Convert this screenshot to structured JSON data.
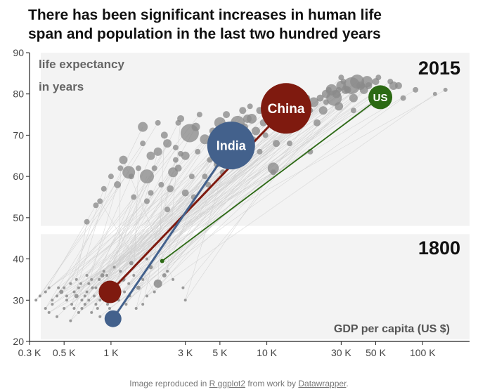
{
  "title_lines": [
    "There has been significant increases in human life",
    "span and population in the last two hundred years"
  ],
  "caption": {
    "prefix": "Image reproduced in ",
    "link1": "R ggplot2",
    "middle": " from work by ",
    "link2": "Datawrapper",
    "suffix": "."
  },
  "colors": {
    "panel_bg": "#f3f3f3",
    "bubble_gray": "#8a8a8a",
    "trail_gray": "#cfcfcf",
    "china": "#7f1a0f",
    "india": "#43618c",
    "us": "#2c6a14"
  },
  "chart_data": {
    "type": "scatter",
    "x_scale": "log",
    "xlabel": "GDP per capita (US $)",
    "ylabel": "life expectancy\nin years",
    "xlim": [
      300,
      200000
    ],
    "ylim": [
      20,
      90
    ],
    "x_ticks": [
      300,
      500,
      1000,
      3000,
      5000,
      10000,
      30000,
      50000,
      100000
    ],
    "x_tick_labels": [
      "0.3 K",
      "0.5 K",
      "1 K",
      "3 K",
      "5 K",
      "10 K",
      "30 K",
      "50 K",
      "100 K"
    ],
    "y_ticks": [
      20,
      30,
      40,
      50,
      60,
      70,
      80,
      90
    ],
    "year_labels": [
      "2015",
      "1800"
    ],
    "highlight": [
      {
        "name": "China",
        "gdp_1800": 985,
        "life_1800": 32,
        "gdp_2015": 13300,
        "life_2015": 76.5,
        "color": "china"
      },
      {
        "name": "India",
        "gdp_1800": 1030,
        "life_1800": 25.5,
        "gdp_2015": 5900,
        "life_2015": 67.5,
        "color": "india"
      },
      {
        "name": "US",
        "gdp_1800": 2130,
        "life_1800": 39.5,
        "gdp_2015": 53500,
        "life_2015": 79.2,
        "color": "us"
      }
    ],
    "points_2015": [
      [
        1300,
        61
      ],
      [
        1600,
        72
      ],
      [
        1800,
        65
      ],
      [
        1700,
        60
      ],
      [
        2000,
        66
      ],
      [
        2200,
        70
      ],
      [
        2300,
        68
      ],
      [
        2500,
        61
      ],
      [
        2800,
        74
      ],
      [
        3000,
        65
      ],
      [
        3200,
        70.5
      ],
      [
        3500,
        72
      ],
      [
        4000,
        69
      ],
      [
        4500,
        71
      ],
      [
        5000,
        73
      ],
      [
        5500,
        75
      ],
      [
        6000,
        72
      ],
      [
        6500,
        73
      ],
      [
        7000,
        76
      ],
      [
        7500,
        74
      ],
      [
        8000,
        74
      ],
      [
        9000,
        76
      ],
      [
        10000,
        75
      ],
      [
        11000,
        77
      ],
      [
        12000,
        72
      ],
      [
        14000,
        78
      ],
      [
        15000,
        77
      ],
      [
        16000,
        76
      ],
      [
        18000,
        79
      ],
      [
        20000,
        78
      ],
      [
        22000,
        79
      ],
      [
        24000,
        80
      ],
      [
        26000,
        81
      ],
      [
        28000,
        80
      ],
      [
        30000,
        82
      ],
      [
        32000,
        81
      ],
      [
        35000,
        82
      ],
      [
        38000,
        83
      ],
      [
        40000,
        82
      ],
      [
        42000,
        81
      ],
      [
        45000,
        82
      ],
      [
        50000,
        83
      ],
      [
        55000,
        81
      ],
      [
        60000,
        80
      ],
      [
        65000,
        82
      ],
      [
        70000,
        82
      ],
      [
        800,
        53
      ],
      [
        900,
        57
      ],
      [
        1100,
        58
      ],
      [
        1400,
        55
      ],
      [
        1500,
        62
      ],
      [
        1200,
        64
      ],
      [
        1900,
        62
      ],
      [
        2100,
        58
      ],
      [
        2600,
        64
      ],
      [
        2700,
        62
      ],
      [
        3300,
        60
      ],
      [
        3600,
        66
      ],
      [
        4200,
        58
      ],
      [
        4800,
        63
      ],
      [
        5200,
        61
      ],
      [
        6200,
        70
      ],
      [
        7200,
        72
      ],
      [
        8500,
        71
      ],
      [
        9500,
        73
      ],
      [
        11000,
        62
      ],
      [
        12500,
        74
      ],
      [
        13500,
        78
      ],
      [
        17000,
        77
      ],
      [
        19000,
        76
      ],
      [
        21000,
        73
      ],
      [
        23000,
        76
      ],
      [
        27000,
        79
      ],
      [
        29000,
        77
      ],
      [
        33000,
        81
      ],
      [
        36000,
        76
      ],
      [
        44000,
        83
      ],
      [
        48000,
        80
      ],
      [
        75000,
        79
      ],
      [
        90000,
        81
      ],
      [
        1700,
        54
      ],
      [
        2400,
        57
      ],
      [
        3000,
        56
      ],
      [
        4000,
        60
      ],
      [
        5600,
        67
      ],
      [
        6800,
        68
      ],
      [
        8200,
        69
      ],
      [
        9800,
        70
      ],
      [
        11500,
        68
      ],
      [
        13000,
        71
      ],
      [
        2000,
        73
      ],
      [
        2600,
        67
      ],
      [
        3700,
        75
      ],
      [
        4600,
        67
      ],
      [
        6000,
        66
      ],
      [
        7800,
        77
      ],
      [
        16500,
        73
      ],
      [
        25000,
        81
      ],
      [
        31000,
        83
      ],
      [
        62000,
        83
      ],
      [
        1000,
        60
      ],
      [
        1150,
        62
      ],
      [
        1350,
        60
      ],
      [
        1600,
        68
      ],
      [
        1800,
        56
      ],
      [
        2300,
        52
      ],
      [
        2700,
        73
      ],
      [
        3400,
        55
      ],
      [
        4300,
        64
      ],
      [
        5300,
        69
      ],
      [
        700,
        49
      ],
      [
        850,
        54
      ],
      [
        2800,
        65.5
      ],
      [
        11000,
        61
      ],
      [
        14000,
        68
      ],
      [
        19000,
        66
      ],
      [
        41000,
        82
      ],
      [
        29000,
        81
      ],
      [
        30000,
        84
      ],
      [
        120000,
        80
      ],
      [
        140000,
        81
      ],
      [
        52000,
        84
      ],
      [
        24000,
        78
      ],
      [
        36000,
        79
      ],
      [
        9000,
        66
      ]
    ],
    "sizes_2015": [
      9,
      7,
      6,
      10,
      6,
      5,
      6,
      7,
      5,
      6,
      13,
      6,
      7,
      5,
      8,
      5,
      6,
      10,
      5,
      6,
      7,
      5,
      7,
      5,
      5,
      12,
      8,
      6,
      5,
      7,
      5,
      6,
      8,
      6,
      7,
      6,
      12,
      10,
      6,
      6,
      5,
      5,
      4,
      4,
      6,
      5,
      4,
      4,
      5,
      4,
      4,
      6,
      4,
      4,
      4,
      5,
      4,
      4,
      4,
      5,
      4,
      5,
      5,
      6,
      5,
      8,
      5,
      5,
      6,
      4,
      5,
      6,
      11,
      6,
      5,
      4,
      8,
      5,
      4,
      4,
      4,
      5,
      5,
      4,
      4,
      4,
      4,
      4,
      5,
      4,
      4,
      4,
      4,
      5,
      4,
      4,
      4,
      4,
      4,
      4,
      4,
      4,
      4,
      4,
      4,
      4,
      4,
      4,
      4,
      4,
      4,
      4,
      4,
      4,
      4,
      4,
      4,
      4,
      4,
      3,
      3,
      4,
      4,
      6,
      4
    ],
    "points_1800": [
      [
        330,
        30
      ],
      [
        350,
        31
      ],
      [
        380,
        32
      ],
      [
        400,
        33
      ],
      [
        420,
        30
      ],
      [
        450,
        31
      ],
      [
        480,
        32
      ],
      [
        500,
        33
      ],
      [
        520,
        30
      ],
      [
        550,
        34
      ],
      [
        580,
        32
      ],
      [
        600,
        31
      ],
      [
        620,
        33
      ],
      [
        650,
        30
      ],
      [
        680,
        29
      ],
      [
        700,
        32
      ],
      [
        720,
        34
      ],
      [
        750,
        35
      ],
      [
        780,
        31
      ],
      [
        800,
        33
      ],
      [
        820,
        28
      ],
      [
        850,
        30
      ],
      [
        880,
        36
      ],
      [
        900,
        32
      ],
      [
        950,
        34
      ],
      [
        1000,
        33
      ],
      [
        1100,
        31
      ],
      [
        1150,
        37
      ],
      [
        1200,
        35
      ],
      [
        1300,
        34
      ],
      [
        1400,
        36
      ],
      [
        1500,
        33
      ],
      [
        1600,
        35
      ],
      [
        1700,
        31
      ],
      [
        1800,
        38
      ],
      [
        2000,
        34
      ],
      [
        2200,
        36
      ],
      [
        2500,
        35
      ],
      [
        2900,
        33
      ],
      [
        3000,
        30
      ],
      [
        400,
        27
      ],
      [
        450,
        26
      ],
      [
        550,
        25
      ],
      [
        650,
        28
      ],
      [
        750,
        27
      ],
      [
        850,
        26
      ],
      [
        950,
        29
      ],
      [
        1050,
        27
      ],
      [
        1250,
        29
      ],
      [
        1450,
        28
      ],
      [
        600,
        35
      ],
      [
        700,
        36
      ],
      [
        900,
        37
      ],
      [
        1050,
        38
      ],
      [
        1350,
        39
      ],
      [
        1700,
        40
      ],
      [
        2300,
        37
      ],
      [
        1900,
        32
      ],
      [
        1600,
        29
      ],
      [
        500,
        28
      ],
      [
        560,
        29
      ],
      [
        620,
        27
      ],
      [
        680,
        31
      ],
      [
        760,
        33
      ],
      [
        840,
        35
      ],
      [
        920,
        30
      ],
      [
        980,
        28
      ],
      [
        1120,
        30
      ],
      [
        1220,
        32
      ],
      [
        1320,
        31
      ],
      [
        380,
        28
      ],
      [
        420,
        29
      ],
      [
        460,
        33
      ],
      [
        520,
        31
      ],
      [
        580,
        28
      ],
      [
        640,
        34
      ],
      [
        720,
        30
      ],
      [
        800,
        29
      ],
      [
        860,
        31
      ],
      [
        940,
        36
      ]
    ],
    "sizes_1800": [
      2,
      2,
      2,
      2,
      2,
      2,
      3,
      2,
      2,
      2,
      2,
      3,
      2,
      2,
      2,
      2,
      2,
      2,
      2,
      2,
      2,
      2,
      3,
      3,
      2,
      2,
      3,
      2,
      3,
      2,
      2,
      3,
      2,
      2,
      3,
      6,
      3,
      2,
      2,
      2,
      2,
      2,
      2,
      2,
      2,
      2,
      2,
      2,
      2,
      2,
      2,
      2,
      2,
      2,
      3,
      2,
      2,
      2,
      2,
      2,
      2,
      2,
      2,
      2,
      2,
      2,
      2,
      2,
      2,
      2,
      2,
      2,
      2,
      2,
      2,
      2,
      2,
      2,
      2,
      2
    ]
  }
}
